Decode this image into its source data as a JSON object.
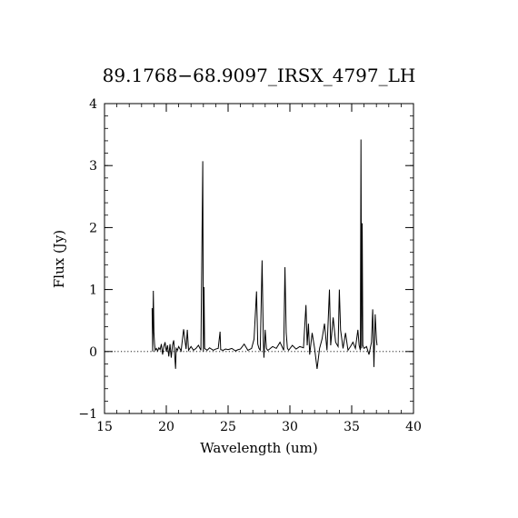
{
  "chart_data": {
    "type": "line",
    "title": "89.1768−68.9097_IRSX_4797_LH",
    "xlabel": "Wavelength (um)",
    "ylabel": "Flux (Jy)",
    "xlim": [
      15,
      40
    ],
    "ylim": [
      -1,
      4
    ],
    "x_ticks": [
      15,
      20,
      25,
      30,
      35,
      40
    ],
    "y_ticks": [
      -1,
      0,
      1,
      2,
      3,
      4
    ],
    "x_tick_labels": [
      "15",
      "20",
      "25",
      "30",
      "35",
      "40"
    ],
    "y_tick_labels": [
      "−1",
      "0",
      "1",
      "2",
      "3",
      "4"
    ],
    "zero_line": {
      "y": 0,
      "style": "dotted"
    },
    "grid": false,
    "series": [
      {
        "color": "#000000",
        "x": [
          18.85,
          18.9,
          18.95,
          19.0,
          19.05,
          19.1,
          19.2,
          19.3,
          19.4,
          19.5,
          19.6,
          19.7,
          19.8,
          19.9,
          20.0,
          20.1,
          20.2,
          20.3,
          20.4,
          20.5,
          20.6,
          20.7,
          20.75,
          20.8,
          20.9,
          21.0,
          21.2,
          21.4,
          21.6,
          21.7,
          21.8,
          22.0,
          22.2,
          22.4,
          22.6,
          22.8,
          22.95,
          23.0,
          23.05,
          23.1,
          23.3,
          23.5,
          23.8,
          24.0,
          24.2,
          24.35,
          24.4,
          24.6,
          24.8,
          25.0,
          25.3,
          25.6,
          25.8,
          26.0,
          26.3,
          26.6,
          26.9,
          27.1,
          27.3,
          27.4,
          27.5,
          27.6,
          27.75,
          27.85,
          27.9,
          28.0,
          28.1,
          28.2,
          28.3,
          28.6,
          28.9,
          29.2,
          29.5,
          29.6,
          29.7,
          29.8,
          29.9,
          30.2,
          30.5,
          30.8,
          31.1,
          31.3,
          31.4,
          31.5,
          31.6,
          31.8,
          32.0,
          32.2,
          32.4,
          32.6,
          32.8,
          33.0,
          33.2,
          33.3,
          33.5,
          33.7,
          33.9,
          34.0,
          34.1,
          34.3,
          34.5,
          34.7,
          34.9,
          35.1,
          35.3,
          35.5,
          35.6,
          35.7,
          35.75,
          35.8,
          35.85,
          35.9,
          36.0,
          36.2,
          36.4,
          36.6,
          36.7,
          36.8,
          36.9,
          37.0,
          37.05
        ],
        "y": [
          0.7,
          0.0,
          0.98,
          0.3,
          0.12,
          0.02,
          0.05,
          0.01,
          0.06,
          0.03,
          0.12,
          -0.05,
          0.08,
          0.15,
          0.0,
          0.1,
          -0.08,
          0.12,
          -0.1,
          0.1,
          0.18,
          -0.12,
          -0.28,
          0.05,
          0.02,
          0.08,
          0.01,
          0.36,
          0.04,
          0.35,
          0.02,
          0.08,
          0.02,
          0.05,
          0.1,
          0.02,
          3.07,
          0.0,
          1.04,
          0.05,
          0.02,
          0.06,
          0.02,
          0.04,
          0.05,
          0.32,
          0.03,
          0.02,
          0.04,
          0.03,
          0.05,
          0.01,
          0.03,
          0.04,
          0.12,
          0.02,
          0.05,
          0.2,
          0.97,
          0.12,
          0.05,
          0.02,
          1.47,
          0.18,
          -0.1,
          0.35,
          0.05,
          0.02,
          0.03,
          0.08,
          0.05,
          0.15,
          0.02,
          1.36,
          0.3,
          0.05,
          0.02,
          0.1,
          0.04,
          0.08,
          0.06,
          0.75,
          0.1,
          0.45,
          -0.05,
          0.3,
          0.05,
          -0.28,
          0.05,
          0.2,
          0.45,
          0.02,
          1.0,
          0.1,
          0.55,
          0.15,
          0.08,
          1.0,
          0.35,
          0.05,
          0.3,
          0.02,
          0.08,
          0.15,
          0.05,
          0.35,
          0.1,
          0.02,
          3.42,
          0.05,
          2.07,
          0.1,
          0.05,
          0.08,
          -0.05,
          0.15,
          0.68,
          -0.25,
          0.6,
          0.2,
          0.1
        ]
      }
    ]
  }
}
